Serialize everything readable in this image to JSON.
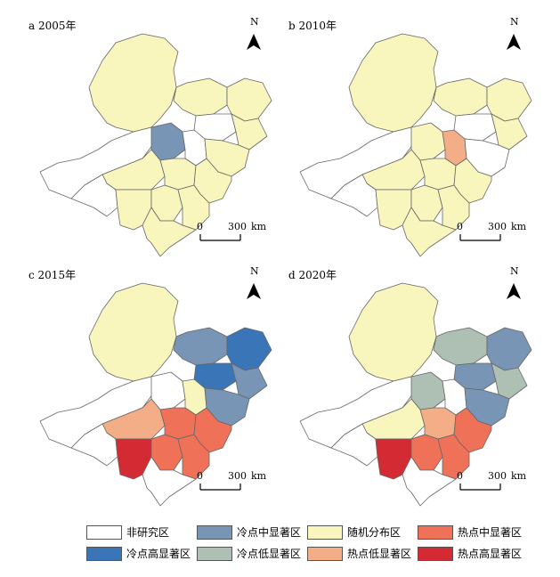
{
  "colors": {
    "non_study": "#ffffff",
    "cold_high": "#3a75b8",
    "cold_mid": "#7895b5",
    "cold_low": "#aebfb3",
    "random": "#f8f5bd",
    "hot_low": "#f4ae87",
    "hot_mid": "#ee7158",
    "hot_high": "#d42a33",
    "outline": "#666666"
  },
  "panels": [
    {
      "label": "a 2005年",
      "north": "N",
      "scale_zero": "0",
      "scale_max": "300",
      "scale_unit": "km"
    },
    {
      "label": "b 2010年",
      "north": "N",
      "scale_zero": "0",
      "scale_max": "300",
      "scale_unit": "km"
    },
    {
      "label": "c 2015年",
      "north": "N",
      "scale_zero": "0",
      "scale_max": "300",
      "scale_unit": "km"
    },
    {
      "label": "d 2020年",
      "north": "N",
      "scale_zero": "0",
      "scale_max": "300",
      "scale_unit": "km"
    }
  ],
  "legend": [
    {
      "label": "非研究区",
      "color": "#ffffff"
    },
    {
      "label": "冷点中显著区",
      "color": "#7895b5"
    },
    {
      "label": "随机分布区",
      "color": "#f8f5bd"
    },
    {
      "label": "热点中显著区",
      "color": "#ee7158"
    },
    {
      "label": "冷点高显著区",
      "color": "#3a75b8"
    },
    {
      "label": "冷点低显著区",
      "color": "#aebfb3"
    },
    {
      "label": "热点低显著区",
      "color": "#f4ae87"
    },
    {
      "label": "热点高显著区",
      "color": "#d42a33"
    }
  ]
}
